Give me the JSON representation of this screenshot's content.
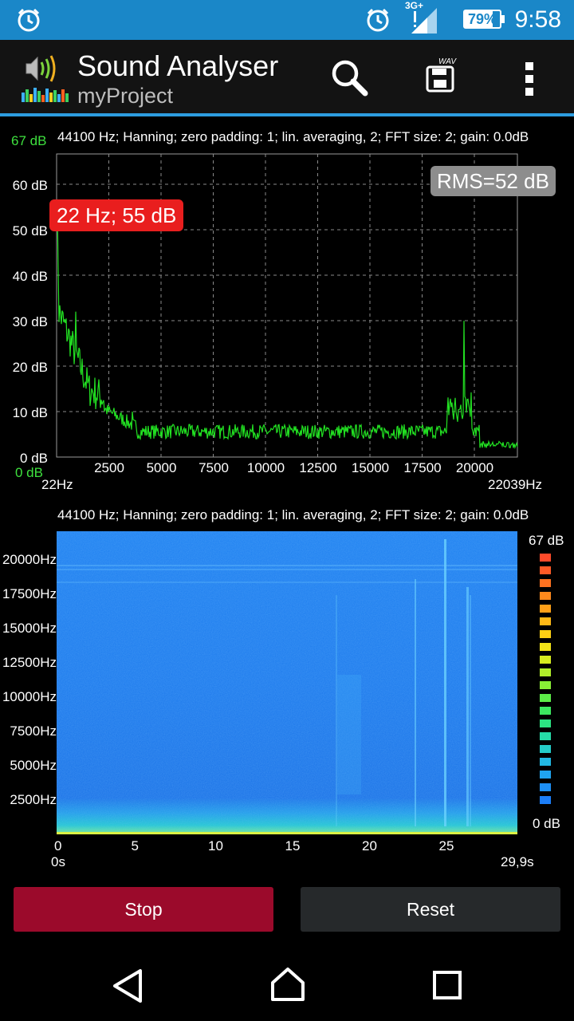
{
  "status_bar": {
    "time": "9:58",
    "battery_percent": "79%",
    "battery_level": 0.79,
    "network": "3G+",
    "icons": [
      "alarm-clock-icon",
      "alarm-icon",
      "signal-icon",
      "battery-icon"
    ]
  },
  "app_bar": {
    "title": "Sound Analyser",
    "subtitle": "myProject",
    "actions": [
      "search-icon",
      "save-wav-icon",
      "overflow-menu-icon"
    ],
    "save_icon_label": "WAV"
  },
  "spectrum": {
    "info": "44100 Hz; Hanning; zero padding: 1; lin. averaging, 2; FFT size: 2; gain: 0.0dB",
    "y_max_label": "67 dB",
    "y_min_label": "0 dB",
    "y_ticks": [
      "60 dB",
      "50 dB",
      "40 dB",
      "30 dB",
      "20 dB",
      "10 dB",
      "0 dB"
    ],
    "x_ticks": [
      "2500",
      "5000",
      "7500",
      "10000",
      "12500",
      "15000",
      "17500",
      "20000"
    ],
    "x_start": "22Hz",
    "x_end": "22039Hz",
    "marker": "22 Hz; 55 dB",
    "rms": "RMS=52 dB",
    "line_color": "#22e022"
  },
  "spectrogram": {
    "info": "44100 Hz; Hanning; zero padding: 1; lin. averaging, 2; FFT size: 2; gain: 0.0dB",
    "freq_labels": [
      "20000Hz",
      "17500Hz",
      "15000Hz",
      "12500Hz",
      "10000Hz",
      "7500Hz",
      "5000Hz",
      "2500Hz"
    ],
    "time_ticks": [
      "0",
      "5",
      "10",
      "15",
      "20",
      "25"
    ],
    "time_start": "0s",
    "time_end": "29,9s",
    "scale_max": "67 dB",
    "scale_min": "0 dB"
  },
  "controls": {
    "stop_label": "Stop",
    "reset_label": "Reset"
  },
  "nav_bar": [
    "back-icon",
    "home-icon",
    "recents-icon"
  ]
}
